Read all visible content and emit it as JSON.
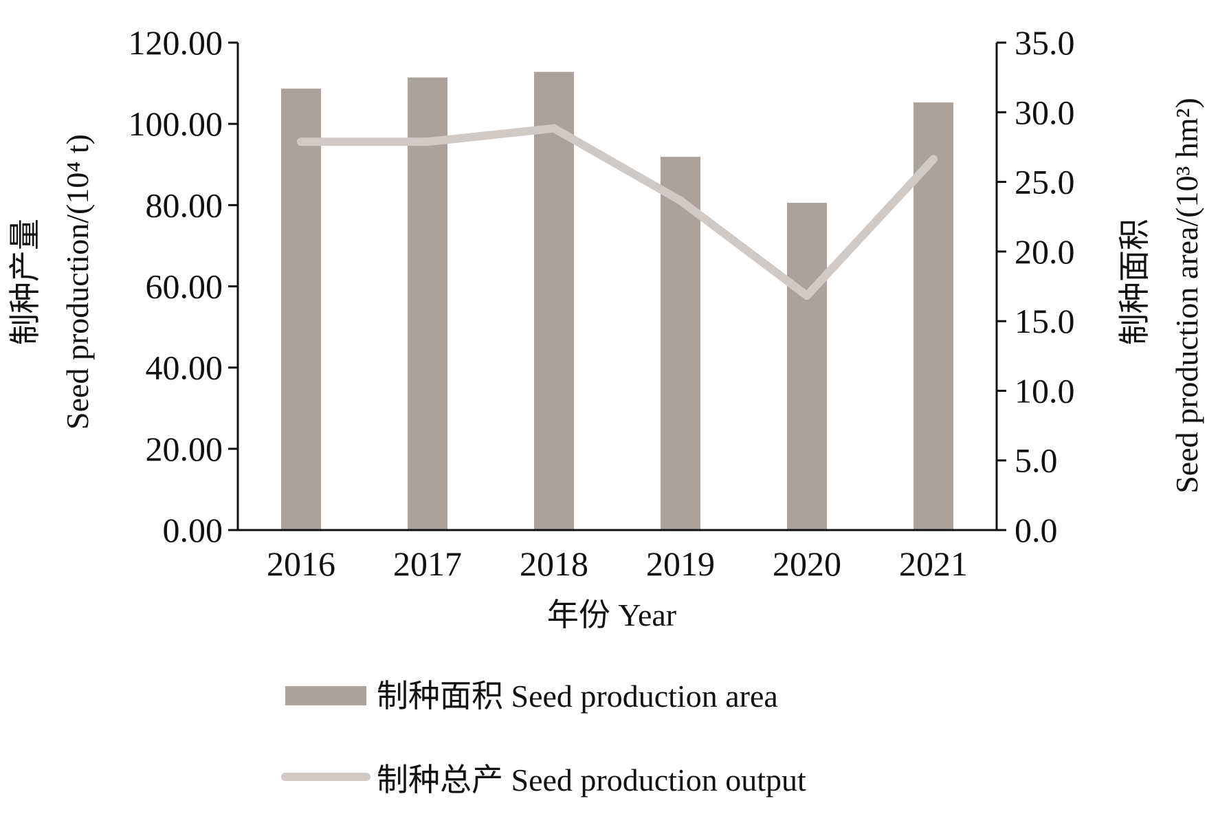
{
  "chart_data": {
    "type": "bar",
    "categories": [
      "2016",
      "2017",
      "2018",
      "2019",
      "2020",
      "2021"
    ],
    "series": [
      {
        "name": "制种面积 Seed production area",
        "kind": "bar",
        "axis": "right",
        "values": [
          31.7,
          32.5,
          32.9,
          26.8,
          23.5,
          30.7
        ],
        "color": "#aba29e"
      },
      {
        "name": "制种总产 Seed production output",
        "kind": "line",
        "axis": "left",
        "values": [
          95.6,
          95.6,
          98.9,
          81.1,
          57.7,
          91.3
        ],
        "color": "#d0cac7"
      }
    ],
    "xlabel": "年份 Year",
    "ylabel_left": "制种产量",
    "ylabel_left_en": "Seed production/(10⁴ t)",
    "ylabel_right": "制种面积",
    "ylabel_right_en": "Seed production area/(10³ hm²)",
    "ylim_left": [
      0,
      120
    ],
    "ylim_right": [
      0,
      35
    ],
    "yticks_left": [
      "0.00",
      "20.00",
      "40.00",
      "60.00",
      "80.00",
      "100.00",
      "120.00"
    ],
    "yticks_right": [
      "0.0",
      "5.0",
      "10.0",
      "15.0",
      "20.0",
      "25.0",
      "30.0",
      "35.0"
    ],
    "grid": false,
    "legend_position": "bottom",
    "axis_color": "#111111"
  }
}
